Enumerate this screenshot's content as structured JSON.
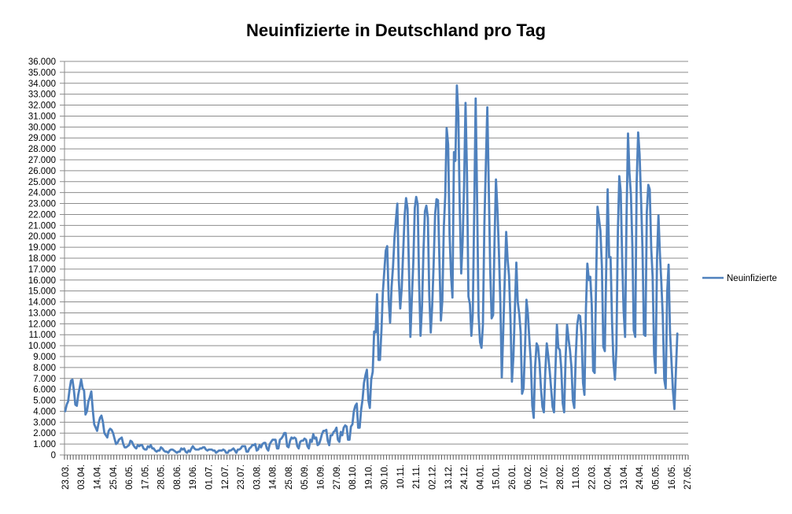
{
  "colors": {
    "line": "#4F81BD",
    "gridline": "#8C8C8C",
    "axis_line": "#8C8C8C",
    "tick": "#595959",
    "text": "#000000",
    "background": "#FFFFFF"
  },
  "chart_data": {
    "type": "line",
    "title": "Neuinfizierte in Deutschland pro Tag",
    "xlabel": "",
    "ylabel": "",
    "ylim": [
      0,
      36000
    ],
    "y_step": 1000,
    "grid": true,
    "legend_position": "right",
    "legend": {
      "entries": [
        {
          "label": "Neuinfizierte",
          "color": "#4F81BD"
        }
      ]
    },
    "y_tick_labels": [
      "0",
      "1.000",
      "2.000",
      "3.000",
      "4.000",
      "5.000",
      "6.000",
      "7.000",
      "8.000",
      "9.000",
      "10.000",
      "11.000",
      "12.000",
      "13.000",
      "14.000",
      "15.000",
      "16.000",
      "17.000",
      "18.000",
      "19.000",
      "20.000",
      "21.000",
      "22.000",
      "23.000",
      "24.000",
      "25.000",
      "26.000",
      "27.000",
      "28.000",
      "29.000",
      "30.000",
      "31.000",
      "32.000",
      "33.000",
      "34.000",
      "35.000",
      "36.000"
    ],
    "x_tick_labels": [
      "23.03.",
      "03.04.",
      "14.04.",
      "25.04.",
      "06.05.",
      "17.05.",
      "28.05.",
      "08.06.",
      "19.06.",
      "01.07.",
      "12.07.",
      "23.07.",
      "03.08.",
      "14.08.",
      "25.08.",
      "05.09.",
      "16.09.",
      "27.09.",
      "08.10.",
      "19.10.",
      "30.10.",
      "10.11.",
      "21.11.",
      "02.12.",
      "13.12.",
      "24.12.",
      "04.01.",
      "15.01.",
      "26.01.",
      "06.02.",
      "17.02.",
      "28.02.",
      "11.03.",
      "22.03.",
      "02.04.",
      "13.04.",
      "24.04.",
      "05.05.",
      "16.05.",
      "27.05."
    ],
    "x_label_every": 11,
    "total_slots": 430,
    "series": [
      {
        "name": "Neuinfizierte",
        "color": "#4F81BD",
        "values": [
          4000,
          4600,
          4900,
          6000,
          6800,
          6900,
          5900,
          4600,
          4500,
          5500,
          6200,
          6900,
          6100,
          5900,
          3700,
          4000,
          4900,
          5300,
          5800,
          4100,
          2800,
          2500,
          2200,
          2900,
          3400,
          3600,
          3000,
          2000,
          1800,
          1600,
          2200,
          2400,
          2300,
          2000,
          1500,
          1000,
          1100,
          1400,
          1500,
          1600,
          1000,
          700,
          700,
          800,
          900,
          1300,
          1200,
          900,
          700,
          600,
          900,
          800,
          900,
          900,
          600,
          500,
          500,
          800,
          700,
          900,
          600,
          600,
          400,
          300,
          400,
          400,
          700,
          600,
          400,
          300,
          300,
          200,
          400,
          500,
          500,
          400,
          300,
          200,
          300,
          300,
          600,
          500,
          600,
          300,
          200,
          400,
          300,
          600,
          800,
          600,
          500,
          500,
          500,
          600,
          600,
          700,
          700,
          500,
          400,
          500,
          500,
          500,
          400,
          400,
          200,
          300,
          400,
          400,
          400,
          500,
          400,
          200,
          200,
          400,
          400,
          500,
          600,
          400,
          200,
          500,
          500,
          600,
          800,
          800,
          800,
          300,
          300,
          600,
          700,
          900,
          900,
          1000,
          400,
          500,
          900,
          700,
          1000,
          1100,
          1100,
          600,
          400,
          1000,
          1200,
          1400,
          1400,
          1400,
          600,
          600,
          1400,
          1500,
          1700,
          2000,
          2000,
          800,
          700,
          1300,
          1600,
          1500,
          1600,
          1500,
          800,
          600,
          1200,
          1300,
          1300,
          1500,
          1400,
          800,
          600,
          1400,
          1200,
          1900,
          1500,
          1600,
          900,
          1000,
          1400,
          1900,
          2200,
          2200,
          2300,
          1300,
          900,
          1800,
          1800,
          2100,
          2200,
          2500,
          1400,
          1200,
          2100,
          1800,
          2500,
          2700,
          2600,
          1400,
          1400,
          2600,
          2800,
          4000,
          4500,
          4700,
          2500,
          2500,
          4100,
          5100,
          6600,
          7300,
          7800,
          5000,
          4300,
          6900,
          7600,
          11300,
          11200,
          14700,
          8700,
          8700,
          11400,
          14900,
          16800,
          18700,
          19100,
          14200,
          12100,
          15400,
          17200,
          19900,
          21500,
          23000,
          16000,
          13400,
          15300,
          18500,
          21900,
          23500,
          22500,
          16900,
          10800,
          14400,
          17600,
          22600,
          23600,
          22900,
          15700,
          10900,
          13600,
          18600,
          22300,
          22800,
          21700,
          14600,
          11200,
          13600,
          17300,
          22000,
          23400,
          23300,
          17800,
          12300,
          14100,
          20800,
          23700,
          29900,
          28400,
          20200,
          16400,
          14400,
          27700,
          26900,
          33800,
          31300,
          22800,
          16600,
          19500,
          24700,
          32200,
          25500,
          14500,
          13800,
          10900,
          12900,
          22500,
          32600,
          22900,
          12700,
          10300,
          9800,
          11900,
          21200,
          26400,
          31800,
          24700,
          16900,
          12500,
          12800,
          19600,
          25200,
          22400,
          18700,
          13900,
          7100,
          11400,
          15900,
          20400,
          17900,
          16400,
          12300,
          6700,
          9000,
          13200,
          17600,
          14000,
          12900,
          11200,
          5600,
          6100,
          9700,
          14200,
          12900,
          10500,
          8600,
          4500,
          3400,
          8100,
          10200,
          9900,
          8400,
          6100,
          4400,
          3900,
          7600,
          10200,
          9100,
          7700,
          6100,
          4400,
          3900,
          8000,
          11900,
          9800,
          9600,
          7900,
          4700,
          3900,
          9000,
          11900,
          10600,
          9600,
          8100,
          5000,
          4300,
          9100,
          11900,
          12800,
          12700,
          10800,
          6600,
          5500,
          13400,
          17500,
          16000,
          16300,
          13700,
          7700,
          7500,
          15800,
          22700,
          21600,
          20500,
          17200,
          9900,
          9500,
          17100,
          24300,
          18100,
          18100,
          12200,
          8500,
          6900,
          9700,
          20400,
          25500,
          24100,
          17900,
          13200,
          10800,
          21700,
          29400,
          25800,
          23800,
          19200,
          11400,
          10800,
          24900,
          29500,
          27500,
          23400,
          18800,
          11000,
          10900,
          22200,
          24700,
          24300,
          18900,
          16300,
          9200,
          7500,
          18000,
          21900,
          18500,
          15700,
          12700,
          6900,
          6100,
          14900,
          17400,
          11300,
          8500,
          5900,
          4200,
          7500,
          11100
        ]
      }
    ]
  }
}
